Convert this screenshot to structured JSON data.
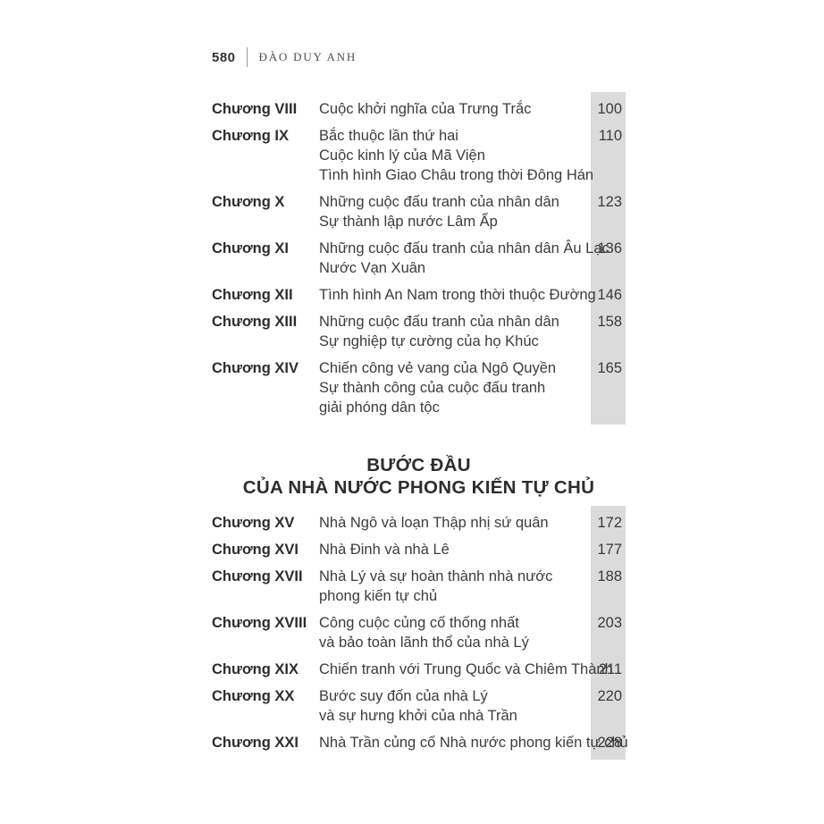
{
  "header": {
    "page_number": "580",
    "author": "ĐÀO DUY ANH"
  },
  "toc": {
    "sections": [
      {
        "rows": [
          {
            "chapter": "Chương VIII",
            "title_lines": [
              "Cuộc khởi nghĩa của Trưng Trắc"
            ],
            "page": "100"
          },
          {
            "chapter": "Chương IX",
            "title_lines": [
              "Bắc thuộc lần thứ hai",
              "Cuộc kinh lý của Mã Viện",
              "Tình hình Giao Châu trong thời Đông Hán"
            ],
            "page": "110"
          },
          {
            "chapter": "Chương X",
            "title_lines": [
              "Những cuộc đấu tranh của nhân dân",
              "Sự thành lập nước Lâm Ấp"
            ],
            "page": "123"
          },
          {
            "chapter": "Chương XI",
            "title_lines": [
              "Những cuộc đấu tranh của nhân dân Âu Lạc",
              "Nước Vạn Xuân"
            ],
            "page": "136"
          },
          {
            "chapter": "Chương XII",
            "title_lines": [
              "Tình hình An Nam trong thời thuộc Đường"
            ],
            "page": "146"
          },
          {
            "chapter": "Chương XIII",
            "title_lines": [
              "Những cuộc đấu tranh của nhân dân",
              "Sự nghiệp tự cường của họ Khúc"
            ],
            "page": "158"
          },
          {
            "chapter": "Chương XIV",
            "title_lines": [
              "Chiến công vẻ vang của Ngô Quyền",
              "Sự thành công của cuộc đấu tranh",
              "giải phóng dân tộc"
            ],
            "page": "165"
          }
        ]
      },
      {
        "heading_lines": [
          "BƯỚC ĐẦU",
          "CỦA NHÀ NƯỚC PHONG KIẾN TỰ CHỦ"
        ],
        "rows": [
          {
            "chapter": "Chương XV",
            "title_lines": [
              "Nhà Ngô và loạn Thập nhị sứ quân"
            ],
            "page": "172"
          },
          {
            "chapter": "Chương XVI",
            "title_lines": [
              "Nhà Đinh và nhà Lê"
            ],
            "page": "177"
          },
          {
            "chapter": "Chương XVII",
            "title_lines": [
              "Nhà Lý và sự hoàn thành nhà nước",
              "phong kiến tự chủ"
            ],
            "page": "188"
          },
          {
            "chapter": "Chương XVIII",
            "title_lines": [
              "Công cuộc củng cố thống nhất",
              "và bảo toàn lãnh thổ của nhà Lý"
            ],
            "page": "203"
          },
          {
            "chapter": "Chương XIX",
            "title_lines": [
              "Chiến tranh với Trung Quốc và Chiêm Thành"
            ],
            "page": "211"
          },
          {
            "chapter": "Chương XX",
            "title_lines": [
              "Bước suy đốn của nhà Lý",
              "và sự hưng khởi của nhà Trần"
            ],
            "page": "220"
          },
          {
            "chapter": "Chương XXI",
            "title_lines": [
              "Nhà Trần củng cố Nhà nước phong kiến tự chủ"
            ],
            "page": "228"
          }
        ]
      }
    ]
  },
  "colors": {
    "page_background": "#ffffff",
    "page_number_strip": "#dbdbdb",
    "body_text": "#3c3c3c",
    "bold_text": "#2d2d2d"
  }
}
